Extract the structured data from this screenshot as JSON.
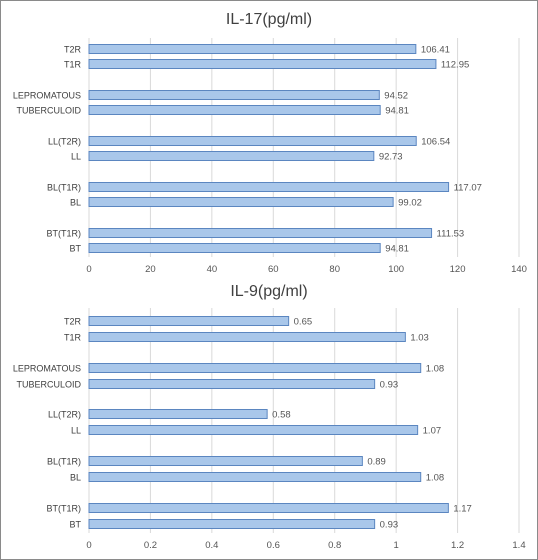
{
  "chart_data": [
    {
      "type": "bar",
      "orientation": "horizontal",
      "title": "IL-17(pg/ml)",
      "categories": [
        "T2R",
        "T1R",
        "LEPROMATOUS",
        "TUBERCULOID",
        "LL(T2R)",
        "LL",
        "BL(T1R)",
        "BL",
        "BT(T1R)",
        "BT"
      ],
      "values": [
        106.41,
        112.95,
        94.52,
        94.81,
        106.54,
        92.73,
        117.07,
        99.02,
        111.53,
        94.81
      ],
      "value_labels": [
        "106.41",
        "112.95",
        "94.52",
        "94.81",
        "106.54",
        "92.73",
        "117.07",
        "99.02",
        "111.53",
        "94.81"
      ],
      "xlim": [
        0,
        140
      ],
      "ticks": [
        "0",
        "20",
        "40",
        "60",
        "80",
        "100",
        "120",
        "140"
      ],
      "tick_values": [
        0,
        20,
        40,
        60,
        80,
        100,
        120,
        140
      ],
      "grid": true,
      "bar_fill": "#a9c7ea",
      "bar_edge": "#5b86c0"
    },
    {
      "type": "bar",
      "orientation": "horizontal",
      "title": "IL-9(pg/ml)",
      "categories": [
        "T2R",
        "T1R",
        "LEPROMATOUS",
        "TUBERCULOID",
        "LL(T2R)",
        "LL",
        "BL(T1R)",
        "BL",
        "BT(T1R)",
        "BT"
      ],
      "values": [
        0.65,
        1.03,
        1.08,
        0.93,
        0.58,
        1.07,
        0.89,
        1.08,
        1.17,
        0.93
      ],
      "value_labels": [
        "0.65",
        "1.03",
        "1.08",
        "0.93",
        "0.58",
        "1.07",
        "0.89",
        "1.08",
        "1.17",
        "0.93"
      ],
      "xlim": [
        0,
        1.4
      ],
      "ticks": [
        "0",
        "0.2",
        "0.4",
        "0.6",
        "0.8",
        "1",
        "1.2",
        "1.4"
      ],
      "tick_values": [
        0,
        0.2,
        0.4,
        0.6,
        0.8,
        1,
        1.2,
        1.4
      ],
      "grid": true,
      "bar_fill": "#a9c7ea",
      "bar_edge": "#5b86c0"
    }
  ]
}
